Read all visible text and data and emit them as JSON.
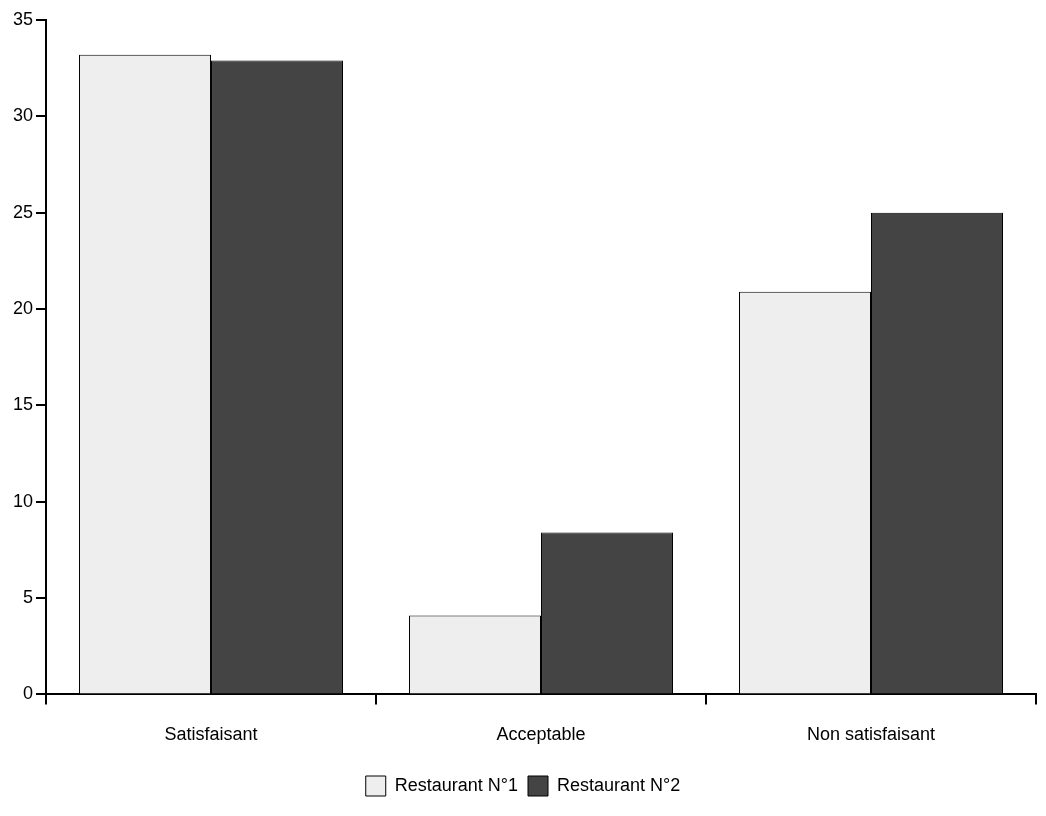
{
  "chart_data": {
    "type": "bar",
    "categories": [
      "Satisfaisant",
      "Acceptable",
      "Non satisfaisant"
    ],
    "series": [
      {
        "name": "Restaurant N°1",
        "color": "#eeeeee",
        "values": [
          33.2,
          4.1,
          20.9
        ]
      },
      {
        "name": "Restaurant N°2",
        "color": "#444444",
        "values": [
          32.9,
          8.4,
          25.0
        ]
      }
    ],
    "ylim": [
      0,
      35
    ],
    "yticks": [
      0,
      5,
      10,
      15,
      20,
      25,
      30,
      35
    ],
    "grid": false,
    "legend": "bottom"
  }
}
